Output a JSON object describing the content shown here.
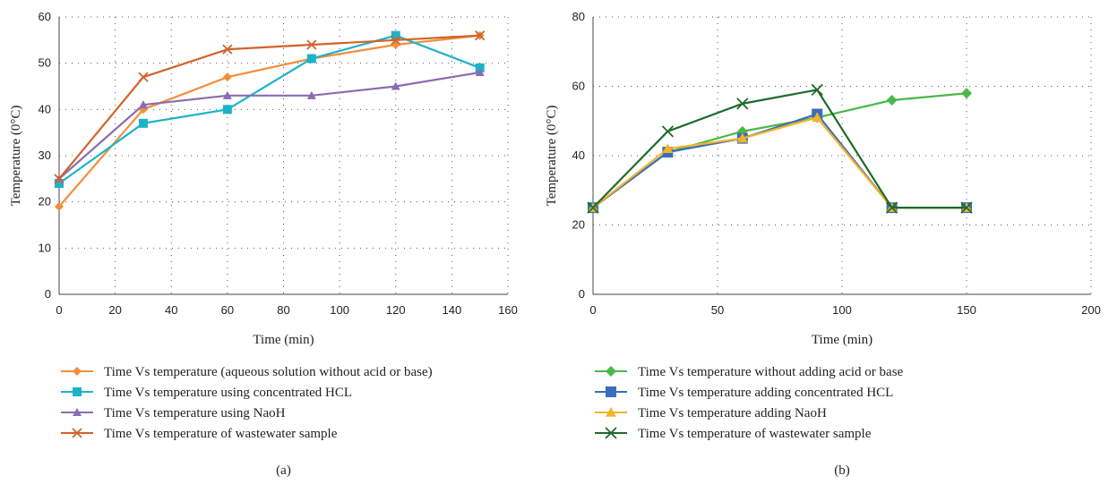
{
  "chart_data": [
    {
      "type": "line",
      "panel_label": "(a)",
      "xlabel": "Time (min)",
      "ylabel": "Temperature (0°C)",
      "xlim": [
        0,
        160
      ],
      "ylim": [
        0,
        60
      ],
      "xticks": [
        0,
        20,
        40,
        60,
        80,
        100,
        120,
        140,
        160
      ],
      "yticks": [
        0,
        10,
        20,
        30,
        40,
        50,
        60
      ],
      "grid": "dotted",
      "legend_position": "bottom",
      "x": [
        0,
        30,
        60,
        90,
        120,
        150
      ],
      "series": [
        {
          "name": "Time Vs temperature (aqueous solution without acid or base)",
          "values": [
            19,
            40,
            47,
            51,
            54,
            56
          ],
          "color": "#F28E3C",
          "marker": "diamond"
        },
        {
          "name": "Time Vs temperature using concentrated HCL",
          "values": [
            24,
            37,
            40,
            51,
            56,
            49
          ],
          "color": "#1BB3C8",
          "marker": "square"
        },
        {
          "name": "Time Vs temperature using NaoH",
          "values": [
            25,
            41,
            43,
            43,
            45,
            48
          ],
          "color": "#8B6BB1",
          "marker": "triangle"
        },
        {
          "name": "Time Vs temperature of wastewater sample",
          "values": [
            25,
            47,
            53,
            54,
            55,
            56
          ],
          "color": "#D2622A",
          "marker": "x"
        }
      ]
    },
    {
      "type": "line",
      "panel_label": "(b)",
      "xlabel": "Time (min)",
      "ylabel": "Temperature (0°C)",
      "xlim": [
        0,
        200
      ],
      "ylim": [
        0,
        80
      ],
      "xticks": [
        0,
        50,
        100,
        150,
        200
      ],
      "yticks": [
        0,
        20,
        40,
        60,
        80
      ],
      "grid": "dotted",
      "legend_position": "bottom",
      "x": [
        0,
        30,
        60,
        90,
        120,
        150
      ],
      "series": [
        {
          "name": "Time Vs temperature without adding acid or base",
          "values": [
            25,
            41,
            47,
            51,
            56,
            58
          ],
          "color": "#4CB749",
          "marker": "diamond"
        },
        {
          "name": "Time Vs temperature adding concentrated HCL",
          "values": [
            25,
            41,
            45,
            52,
            25,
            25
          ],
          "color": "#3A6FB7",
          "marker": "square"
        },
        {
          "name": "Time Vs temperature adding NaoH",
          "values": [
            25,
            42,
            45,
            51,
            25,
            25
          ],
          "color": "#F5B32A",
          "marker": "triangle"
        },
        {
          "name": "Time Vs temperature of wastewater sample",
          "values": [
            25,
            47,
            55,
            59,
            25,
            25
          ],
          "color": "#1F6B2C",
          "marker": "x"
        }
      ]
    }
  ]
}
